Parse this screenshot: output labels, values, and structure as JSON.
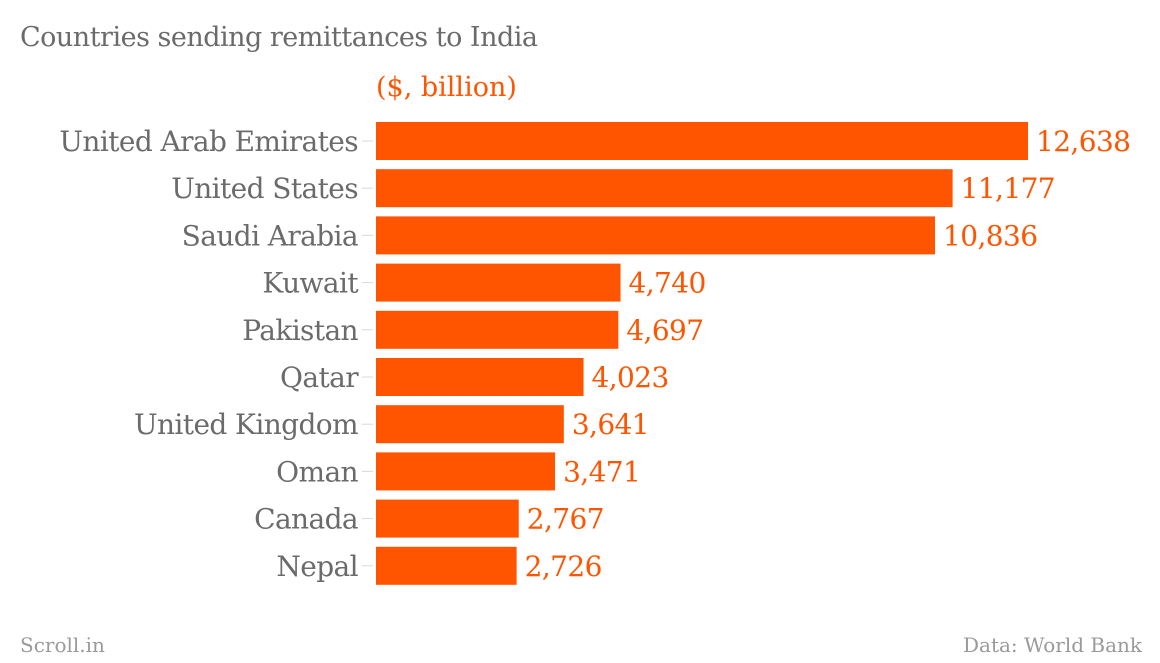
{
  "chart_data": {
    "type": "bar",
    "orientation": "horizontal",
    "title": "Countries sending remittances to India",
    "unit_label": "($, billion)",
    "categories": [
      "United Arab Emirates",
      "United States",
      "Saudi Arabia",
      "Kuwait",
      "Pakistan",
      "Qatar",
      "United Kingdom",
      "Oman",
      "Canada",
      "Nepal"
    ],
    "values": [
      12638,
      11177,
      10836,
      4740,
      4697,
      4023,
      3641,
      3471,
      2767,
      2726
    ],
    "value_labels": [
      "12,638",
      "11,177",
      "10,836",
      "4,740",
      "4,697",
      "4,023",
      "3,641",
      "3,471",
      "2,767",
      "2,726"
    ],
    "xlim": [
      0,
      12638
    ],
    "grid": false,
    "bar_color": "#ff5500",
    "label_color": "#ff5500"
  },
  "footer": {
    "left": "Scroll.in",
    "right": "Data: World Bank"
  }
}
